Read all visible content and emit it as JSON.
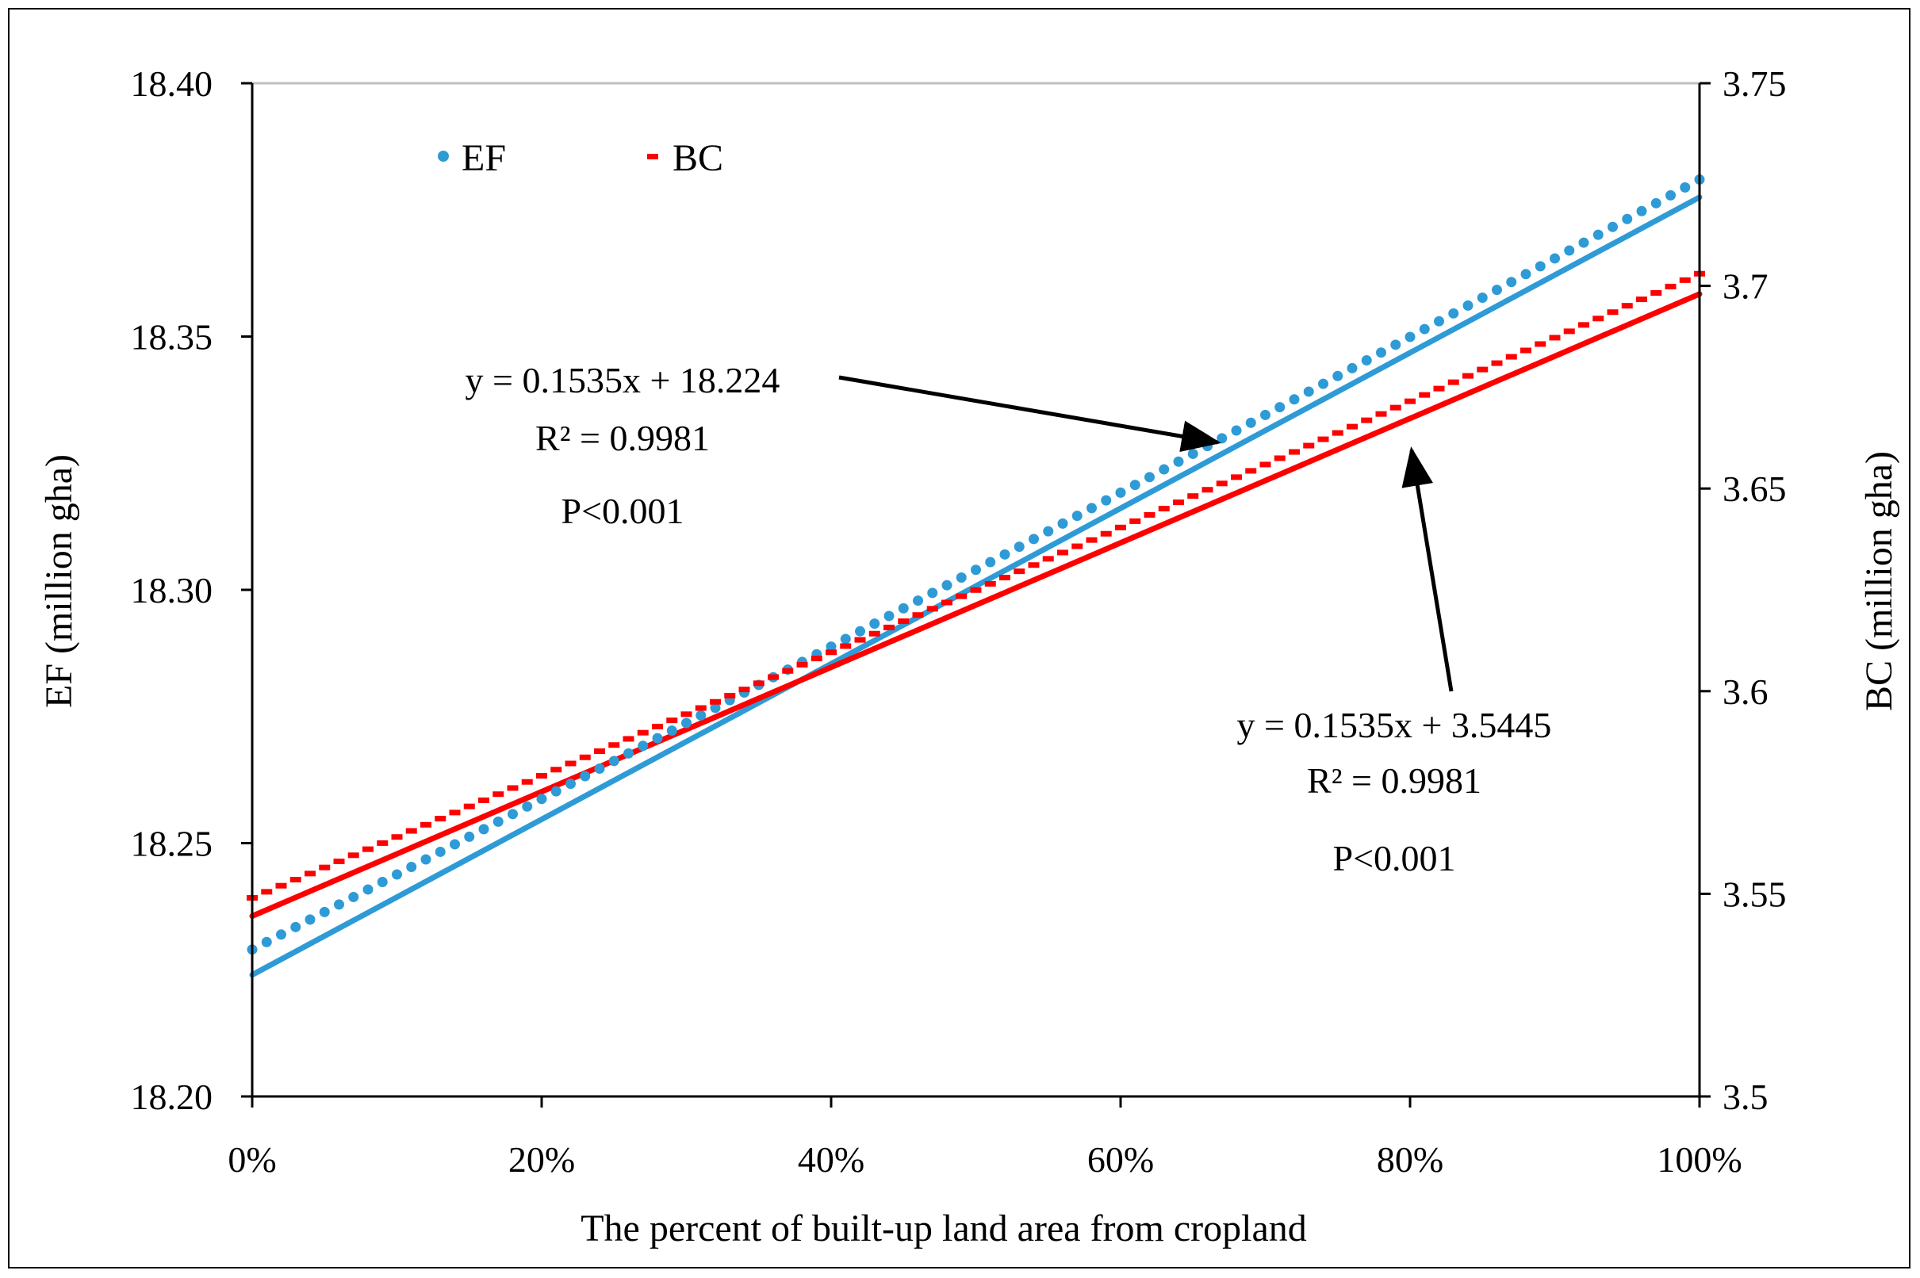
{
  "chart_data": {
    "type": "scatter",
    "xlabel": "The percent of built-up land area from cropland",
    "ylabel_left": "EF (million gha)",
    "ylabel_right": "BC (million gha)",
    "x_ticks": [
      "0%",
      "20%",
      "40%",
      "60%",
      "80%",
      "100%"
    ],
    "x_range": [
      0,
      1
    ],
    "y_left_ticks": [
      "18.20",
      "18.25",
      "18.30",
      "18.35",
      "18.40"
    ],
    "y_left_range": [
      18.2,
      18.4
    ],
    "y_right_ticks": [
      "3.5",
      "3.55",
      "3.6",
      "3.65",
      "3.7",
      "3.75"
    ],
    "y_right_range": [
      3.5,
      3.75
    ],
    "legend": {
      "position": "top-left",
      "entries": [
        "EF",
        "BC"
      ]
    },
    "series": [
      {
        "name": "EF",
        "axis": "left",
        "color": "#2e9bd6",
        "marker": "circle",
        "points_count": 101,
        "x_start": 0,
        "x_end": 1,
        "y_start": 18.229,
        "y_end": 18.381,
        "curvature": 0.012,
        "trend": {
          "slope": 0.1535,
          "intercept": 18.224,
          "equation": "y = 0.1535x + 18.224",
          "r2": "R² = 0.9981",
          "p": "P<0.001"
        }
      },
      {
        "name": "BC",
        "axis": "right",
        "color": "#ff0000",
        "marker": "dash",
        "points_count": 101,
        "x_start": 0,
        "x_end": 1,
        "y_start": 3.549,
        "y_end": 3.703,
        "curvature": 0.012,
        "trend": {
          "slope": 0.1535,
          "intercept": 3.5445,
          "equation": "y = 0.1535x + 3.5445",
          "r2": "R² = 0.9981",
          "p": "P<0.001"
        }
      }
    ]
  }
}
